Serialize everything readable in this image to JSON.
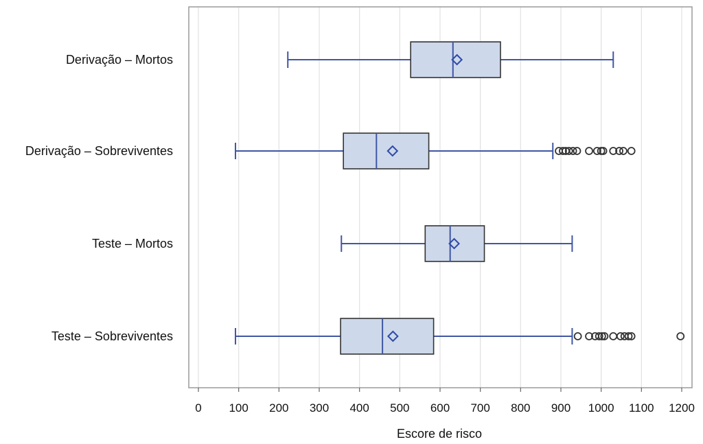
{
  "chart_data": {
    "type": "boxplot",
    "orientation": "horizontal",
    "xlabel": "Escore de risco",
    "xlim": [
      -10,
      1230
    ],
    "x_ticks": [
      0,
      100,
      200,
      300,
      400,
      500,
      600,
      700,
      800,
      900,
      1000,
      1100,
      1200
    ],
    "grid": "vertical",
    "colors": {
      "box_fill": "#cdd8ea",
      "box_edge": "#333333",
      "whisker": "#3f56a3",
      "median": "#3f56a3",
      "mean_marker": "#2f4aa8",
      "outlier": "#333333",
      "grid": "#e3e3e3",
      "frame": "#9a9a9a"
    },
    "series": [
      {
        "name": "Derivação – Mortos",
        "whisker_low": 222,
        "q1": 527,
        "median": 632,
        "q3": 750,
        "whisker_high": 1030,
        "mean": 642,
        "outliers": []
      },
      {
        "name": "Derivação – Sobreviventes",
        "whisker_low": 92,
        "q1": 360,
        "median": 442,
        "q3": 572,
        "whisker_high": 880,
        "mean": 482,
        "outliers": [
          895,
          905,
          912,
          920,
          930,
          940,
          970,
          990,
          1000,
          1005,
          1030,
          1045,
          1055,
          1075
        ]
      },
      {
        "name": "Teste – Mortos",
        "whisker_low": 355,
        "q1": 563,
        "median": 625,
        "q3": 710,
        "whisker_high": 928,
        "mean": 635,
        "outliers": []
      },
      {
        "name": "Teste – Sobreviventes",
        "whisker_low": 92,
        "q1": 353,
        "median": 457,
        "q3": 584,
        "whisker_high": 928,
        "mean": 483,
        "outliers": [
          942,
          970,
          985,
          995,
          1002,
          1008,
          1030,
          1048,
          1058,
          1068,
          1075,
          1197
        ]
      }
    ]
  }
}
